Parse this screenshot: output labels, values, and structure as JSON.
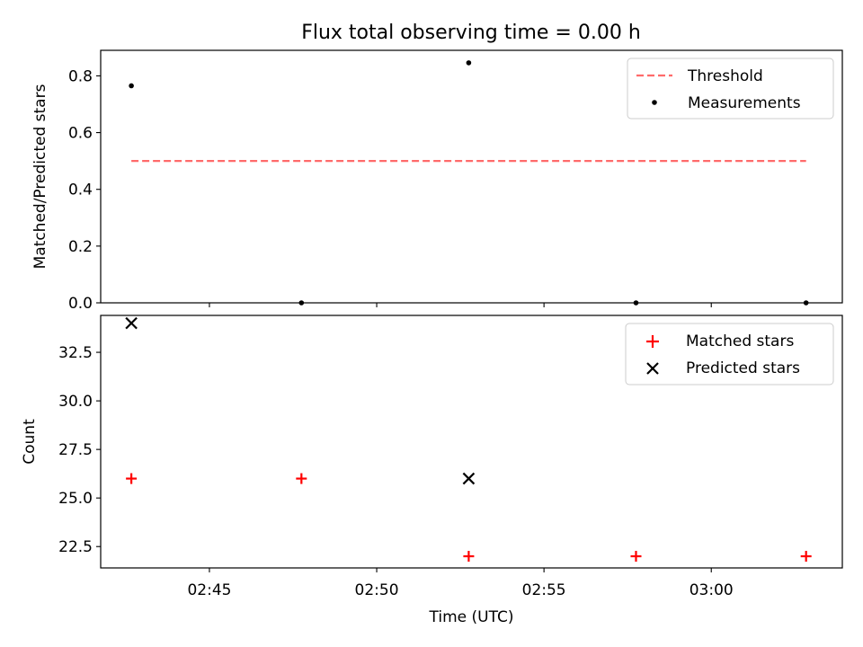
{
  "figure_title": "Flux total observing time = 0.00 h",
  "xlabel": "Time (UTC)",
  "x_tick_labels": [
    "02:45",
    "02:50",
    "02:55",
    "03:00"
  ],
  "colors": {
    "threshold": "#ff6b6b",
    "measurements": "#000000",
    "matched": "#ff0000",
    "predicted": "#000000"
  },
  "chart_data": [
    {
      "type": "scatter",
      "title": "Flux total observing time = 0.00 h",
      "ylabel": "Matched/Predicted stars",
      "xlabel": "",
      "x_ticks": [
        "02:45",
        "02:50",
        "02:55",
        "03:00"
      ],
      "xlim": [
        "02:41:45",
        "03:03:55"
      ],
      "ylim": [
        0,
        0.89
      ],
      "y_ticks": [
        "0.0",
        "0.2",
        "0.4",
        "0.6",
        "0.8"
      ],
      "legend_position": "top-right",
      "series": [
        {
          "name": "Threshold",
          "kind": "dashed-line",
          "x": [
            "02:42:40",
            "03:02:50"
          ],
          "y": [
            0.5,
            0.5
          ]
        },
        {
          "name": "Measurements",
          "kind": "dot",
          "x": [
            "02:42:40",
            "02:47:45",
            "02:52:45",
            "02:57:45",
            "03:02:50"
          ],
          "y": [
            0.765,
            0.0,
            0.846,
            0.0,
            0.0
          ]
        }
      ]
    },
    {
      "type": "scatter",
      "ylabel": "Count",
      "xlabel": "Time (UTC)",
      "x_ticks": [
        "02:45",
        "02:50",
        "02:55",
        "03:00"
      ],
      "xlim": [
        "02:41:45",
        "03:03:55"
      ],
      "ylim": [
        21.4,
        34.4
      ],
      "y_ticks": [
        "22.5",
        "25.0",
        "27.5",
        "30.0",
        "32.5"
      ],
      "legend_position": "top-right",
      "series": [
        {
          "name": "Matched stars",
          "kind": "plus",
          "x": [
            "02:42:40",
            "02:47:45",
            "02:52:45",
            "02:57:45",
            "03:02:50"
          ],
          "y": [
            26,
            26,
            22,
            22,
            22
          ]
        },
        {
          "name": "Predicted stars",
          "kind": "x",
          "x": [
            "02:42:40",
            "02:52:45"
          ],
          "y": [
            34,
            26
          ]
        }
      ]
    }
  ]
}
